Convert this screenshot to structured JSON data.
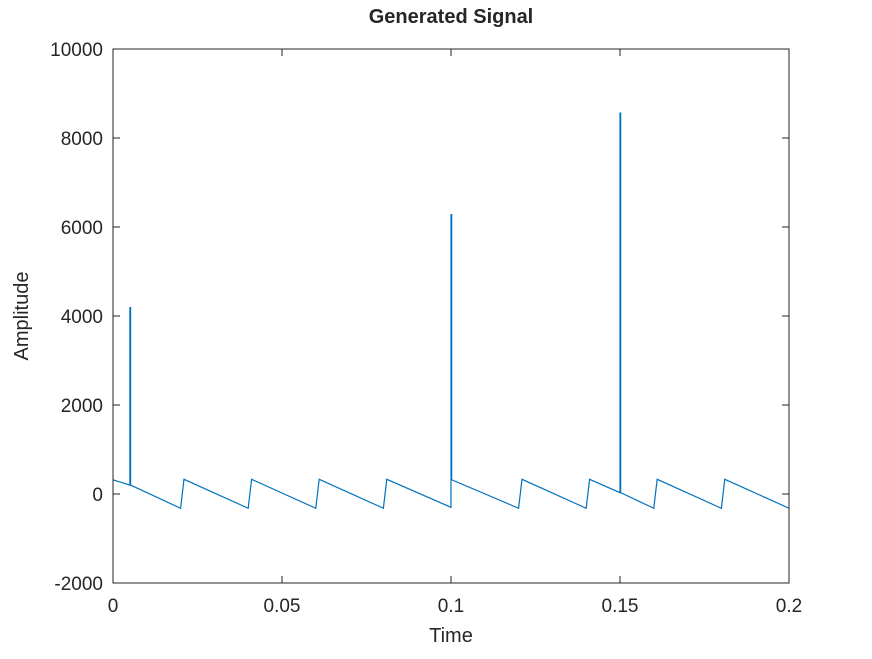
{
  "chart_data": {
    "type": "line",
    "title": "Generated Signal",
    "xlabel": "Time",
    "ylabel": "Amplitude",
    "xlim": [
      0,
      0.2
    ],
    "ylim": [
      -2000,
      10000
    ],
    "xticks": [
      0,
      0.05,
      0.1,
      0.15,
      0.2
    ],
    "xtick_labels": [
      "0",
      "0.05",
      "0.1",
      "0.15",
      "0.2"
    ],
    "yticks": [
      -2000,
      0,
      2000,
      4000,
      6000,
      8000,
      10000
    ],
    "ytick_labels": [
      "-2000",
      "0",
      "2000",
      "4000",
      "6000",
      "8000",
      "10000"
    ],
    "grid": false,
    "line_color": "#0072BD",
    "series": [
      {
        "x": [
          0,
          0.005,
          0.005,
          0.0052,
          0.0052,
          0.02,
          0.021,
          0.04,
          0.041,
          0.06,
          0.061,
          0.08,
          0.081,
          0.1,
          0.1,
          0.1002,
          0.1002,
          0.12,
          0.121,
          0.14,
          0.141,
          0.15,
          0.15,
          0.1502,
          0.1502,
          0.16,
          0.161,
          0.18,
          0.181,
          0.2
        ],
        "y": [
          320,
          200,
          4190,
          4190,
          200,
          -320,
          330,
          -320,
          330,
          -320,
          330,
          -320,
          330,
          -300,
          6280,
          6280,
          320,
          -320,
          330,
          -320,
          330,
          30,
          8560,
          8560,
          30,
          -320,
          330,
          -320,
          330,
          -320
        ]
      }
    ]
  }
}
